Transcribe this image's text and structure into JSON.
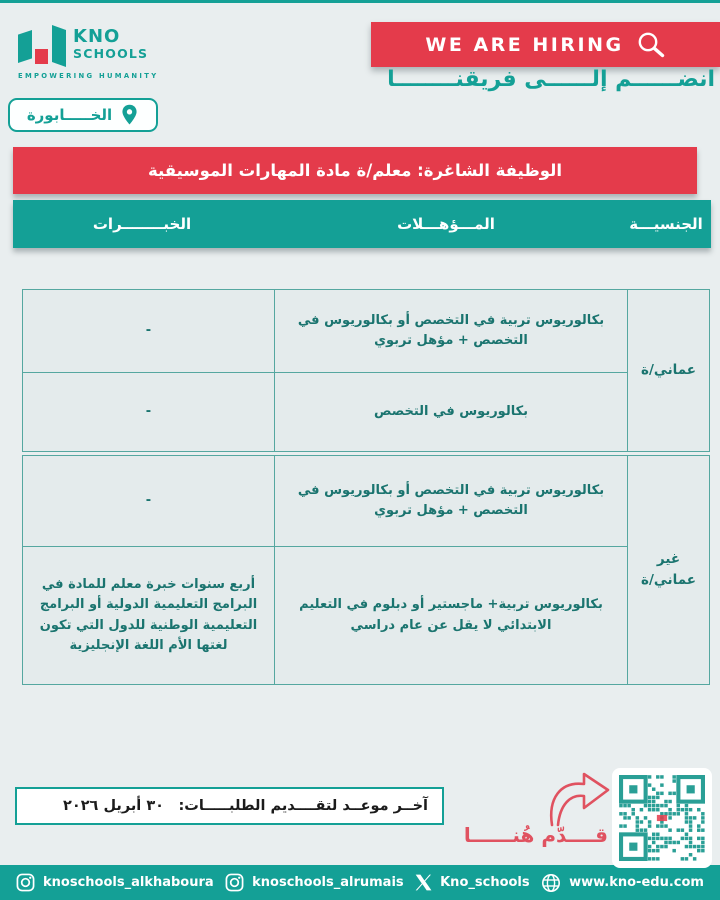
{
  "theme": {
    "teal": "#14a096",
    "red": "#e43b4b",
    "page_bg": "#e9eeef",
    "cell_bg": "#e4ebec",
    "cell_text": "#1a746f"
  },
  "logo": {
    "kno": "KNO",
    "schools": "SCHOOLS",
    "tagline": "EMPOWERING HUMANITY"
  },
  "hero": {
    "hiring_label": "WE ARE HIRING",
    "join_label": "انضــــــم إلــــــى فريقنــــــــا"
  },
  "location": {
    "label": "الخـــــابورة"
  },
  "job": {
    "title": "الوظيفة الشاغرة: معلم/ة مادة المهارات الموسيقية"
  },
  "table": {
    "headers": {
      "nationality": "الجنسيـــة",
      "qualifications": "المـــؤهـــلات",
      "experience": "الخبــــــــرات"
    },
    "groups": [
      {
        "nationality": "عماني/ة",
        "rows": [
          {
            "qualification": "بكالوريوس تربية في التخصص أو بكالوريوس في التخصص + مؤهل تربوي",
            "experience": "-"
          },
          {
            "qualification": "بكالوريوس في التخصص",
            "experience": "-"
          }
        ]
      },
      {
        "nationality": "غير عماني/ة",
        "rows": [
          {
            "qualification": "بكالوريوس تربية في التخصص أو بكالوريوس في التخصص + مؤهل تربوي",
            "experience": "-"
          },
          {
            "qualification": "بكالوريوس تربية+ ماجستير أو دبلوم في التعليم الابتدائي لا يقل عن عام دراسي",
            "experience": "أربع سنوات خبرة معلم للمادة في البرامج التعليمية الدولية أو البرامج التعليمية الوطنية للدول التي تكون لغتها الأم اللغة الإنجليزية"
          }
        ]
      }
    ]
  },
  "deadline": {
    "label": "آخــر موعــد لتقــــديم الطلبـــــات:",
    "date": "٣٠ أبريل ٢٠٢٦"
  },
  "apply": {
    "label": "قــــدّم هُنــــــا"
  },
  "footer": {
    "items": [
      {
        "icon": "instagram-icon",
        "label": "knoschools_alkhaboura"
      },
      {
        "icon": "instagram-icon",
        "label": "knoschools_alrumais"
      },
      {
        "icon": "x-icon",
        "label": "Kno_schools"
      },
      {
        "icon": "globe-icon",
        "label": "www.kno-edu.com"
      }
    ]
  }
}
